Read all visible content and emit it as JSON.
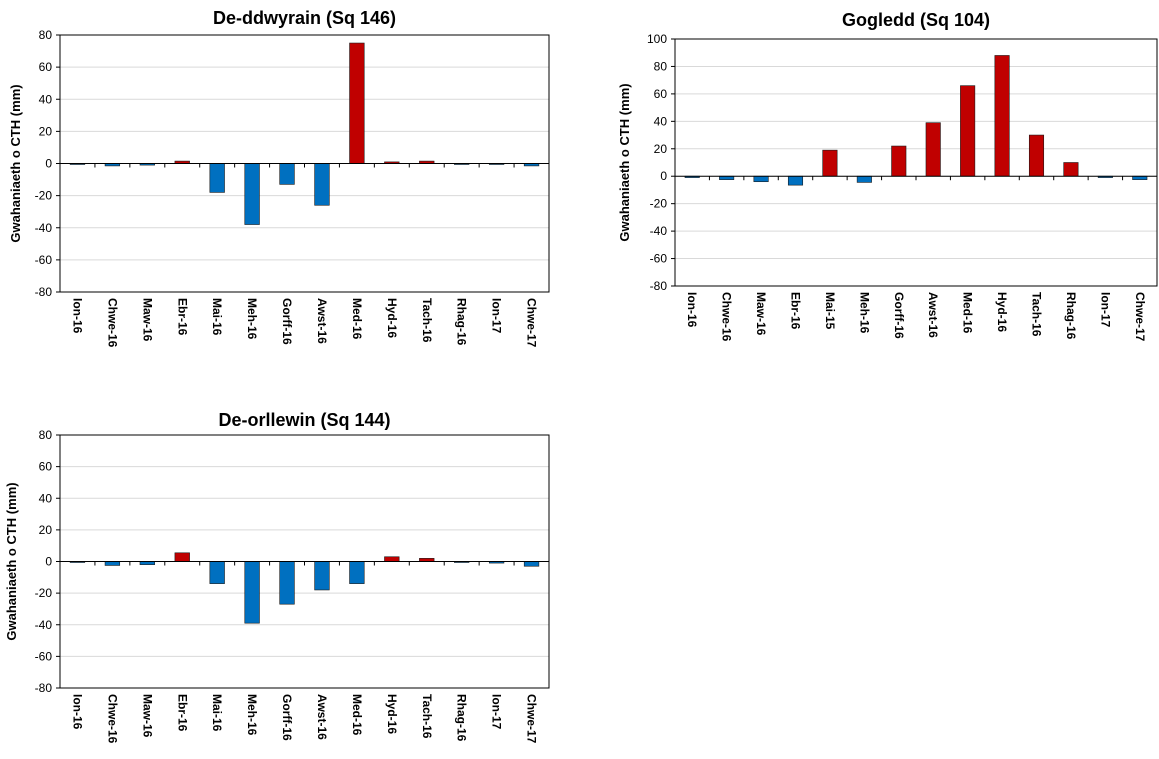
{
  "colors": {
    "positive": "#c00000",
    "negative": "#0070c0",
    "grid": "#d9d9d9",
    "axis": "#000000"
  },
  "chart_data": [
    {
      "type": "bar",
      "title": "De-ddwyrain (Sq 146)",
      "ylabel": "Gwahaniaeth o CTH (mm)",
      "xlabel": "",
      "ylim": [
        -80,
        80
      ],
      "yticks": [
        80,
        60,
        40,
        20,
        0,
        -20,
        -40,
        -60,
        -80
      ],
      "grid": true,
      "categories": [
        "Ion-16",
        "Chwe-16",
        "Maw-16",
        "Ebr-16",
        "Mai-16",
        "Meh-16",
        "Gorff-16",
        "Awst-16",
        "Med-16",
        "Hyd-16",
        "Tach-16",
        "Rhag-16",
        "Ion-17",
        "Chwe-17"
      ],
      "values": [
        -0.5,
        -1.5,
        -1,
        1.5,
        -18,
        -38,
        -13,
        -26,
        75,
        1,
        1.5,
        -0.5,
        -0.5,
        -1.5
      ]
    },
    {
      "type": "bar",
      "title": "Gogledd (Sq 104)",
      "ylabel": "Gwahaniaeth o CTH (mm)",
      "xlabel": "",
      "ylim": [
        -80,
        100
      ],
      "yticks": [
        100,
        80,
        60,
        40,
        20,
        0,
        -20,
        -40,
        -60,
        -80
      ],
      "grid": true,
      "categories": [
        "Ion-16",
        "Chwe-16",
        "Maw-16",
        "Ebr-16",
        "Mai-15",
        "Meh-16",
        "Gorff-16",
        "Awst-16",
        "Med-16",
        "Hyd-16",
        "Tach-16",
        "Rhag-16",
        "Ion-17",
        "Chwe-17"
      ],
      "values": [
        -1,
        -2.5,
        -4,
        -6.5,
        19,
        -4.5,
        22,
        39,
        66,
        88,
        30,
        10,
        -1,
        -2.5
      ]
    },
    {
      "type": "bar",
      "title": "De-orllewin (Sq 144)",
      "ylabel": "Gwahaniaeth o CTH (mm)",
      "xlabel": "",
      "ylim": [
        -80,
        80
      ],
      "yticks": [
        80,
        60,
        40,
        20,
        0,
        -20,
        -40,
        -60,
        -80
      ],
      "grid": true,
      "categories": [
        "Ion-16",
        "Chwe-16",
        "Maw-16",
        "Ebr-16",
        "Mai-16",
        "Meh-16",
        "Gorff-16",
        "Awst-16",
        "Med-16",
        "Hyd-16",
        "Tach-16",
        "Rhag-16",
        "Ion-17",
        "Chwe-17"
      ],
      "values": [
        -0.5,
        -2.5,
        -2,
        5.5,
        -14,
        -39,
        -27,
        -18,
        -14,
        3,
        2,
        -0.5,
        -1,
        -3
      ]
    }
  ]
}
